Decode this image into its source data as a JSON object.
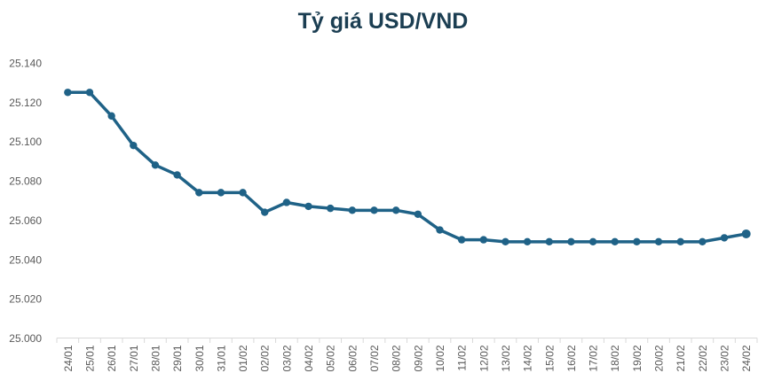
{
  "chart_data": {
    "type": "line",
    "title": "Tỷ giá USD/VND",
    "categories": [
      "24/01",
      "25/01",
      "26/01",
      "27/01",
      "28/01",
      "29/01",
      "30/01",
      "31/01",
      "01/02",
      "02/02",
      "03/02",
      "04/02",
      "05/02",
      "06/02",
      "07/02",
      "08/02",
      "09/02",
      "10/02",
      "11/02",
      "12/02",
      "13/02",
      "14/02",
      "15/02",
      "16/02",
      "17/02",
      "18/02",
      "19/02",
      "20/02",
      "21/02",
      "22/02",
      "23/02",
      "24/02"
    ],
    "series": [
      {
        "name": "Tỷ giá USD/VND",
        "values": [
          25125,
          25125,
          25113,
          25098,
          25088,
          25083,
          25074,
          25074,
          25074,
          25064,
          25069,
          25067,
          25066,
          25065,
          25065,
          25065,
          25063,
          25055,
          25050,
          25050,
          25049,
          25049,
          25049,
          25049,
          25049,
          25049,
          25049,
          25049,
          25049,
          25049,
          25051,
          25053
        ]
      }
    ],
    "xlabel": "",
    "ylabel": "",
    "ylim": [
      25000,
      25140
    ],
    "ytick_step": 20,
    "yticks": [
      {
        "value": 25000,
        "label": "25.000"
      },
      {
        "value": 25020,
        "label": "25.020"
      },
      {
        "value": 25040,
        "label": "25.040"
      },
      {
        "value": 25060,
        "label": "25.060"
      },
      {
        "value": 25080,
        "label": "25.080"
      },
      {
        "value": 25100,
        "label": "25.100"
      },
      {
        "value": 25120,
        "label": "25.120"
      },
      {
        "value": 25140,
        "label": "25.140"
      }
    ],
    "grid": false,
    "legend": false,
    "x_label_rotation": -90,
    "colors": {
      "line": "#1f6287",
      "marker": "#1f6287",
      "axis_text": "#595959",
      "axis_line": "#d9d9d9",
      "title": "#1b3e52"
    }
  }
}
